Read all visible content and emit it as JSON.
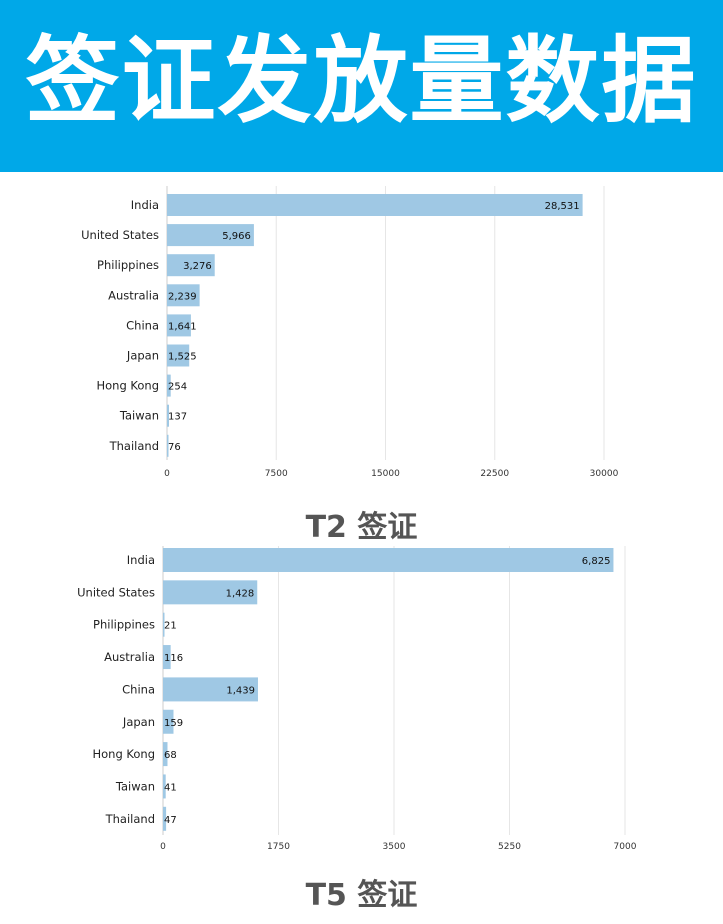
{
  "banner": {
    "title": "签证发放量数据"
  },
  "colors": {
    "banner_bg": "#00a8e8",
    "bar": "#9fc8e4",
    "caption": "#555555"
  },
  "chart_data": [
    {
      "type": "bar",
      "orientation": "horizontal",
      "title": "T2 签证",
      "categories": [
        "India",
        "United States",
        "Philippines",
        "Australia",
        "China",
        "Japan",
        "Hong Kong",
        "Taiwan",
        "Thailand"
      ],
      "values": [
        28531,
        5966,
        3276,
        2239,
        1641,
        1525,
        254,
        137,
        76
      ],
      "value_labels": [
        "28,531",
        "5,966",
        "3,276",
        "2,239",
        "1,641",
        "1,525",
        "254",
        "137",
        "76"
      ],
      "x_ticks": [
        "0",
        "7500",
        "15000",
        "22500",
        "30000"
      ],
      "xlim": [
        0,
        30000
      ],
      "grid": true
    },
    {
      "type": "bar",
      "orientation": "horizontal",
      "title": "T5 签证",
      "categories": [
        "India",
        "United States",
        "Philippines",
        "Australia",
        "China",
        "Japan",
        "Hong Kong",
        "Taiwan",
        "Thailand"
      ],
      "values": [
        6825,
        1428,
        21,
        116,
        1439,
        159,
        68,
        41,
        47
      ],
      "value_labels": [
        "6,825",
        "1,428",
        "21",
        "116",
        "1,439",
        "159",
        "68",
        "41",
        "47"
      ],
      "x_ticks": [
        "0",
        "1750",
        "3500",
        "5250",
        "7000"
      ],
      "xlim": [
        0,
        7000
      ],
      "grid": true
    }
  ]
}
